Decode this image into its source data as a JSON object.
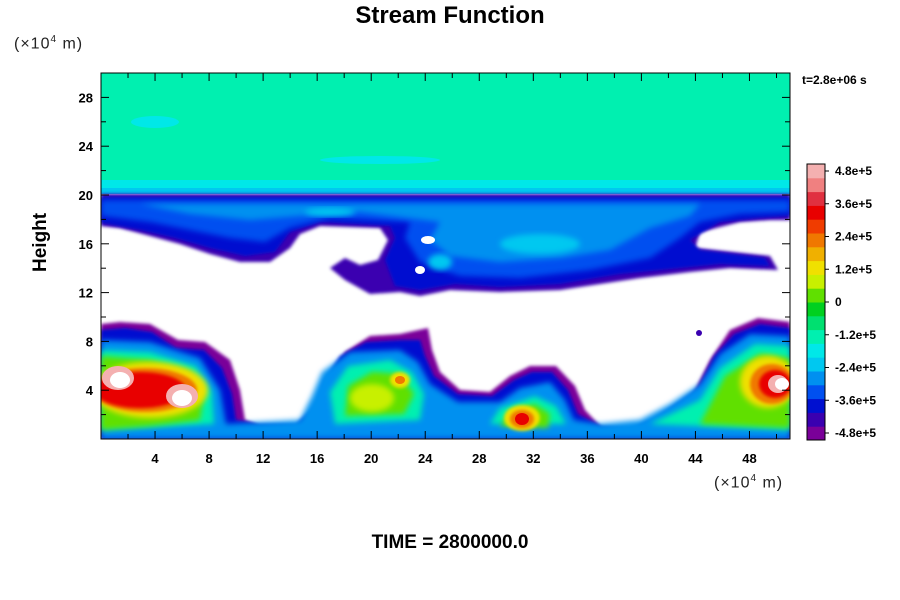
{
  "chart_data": {
    "type": "heatmap",
    "title": "Stream Function",
    "ylabel": "Height",
    "xlabel": "",
    "y_unit": {
      "base": "(×10",
      "exp": "4",
      "tail": " m)"
    },
    "x_unit": {
      "base": "(×10",
      "exp": "4",
      "tail": " m)"
    },
    "xlim": [
      0,
      51
    ],
    "ylim": [
      0,
      30
    ],
    "x_ticks": [
      "4",
      "8",
      "12",
      "16",
      "20",
      "24",
      "28",
      "32",
      "36",
      "40",
      "44",
      "48"
    ],
    "y_ticks": [
      "4",
      "8",
      "12",
      "16",
      "20",
      "24",
      "28"
    ],
    "time_stamp": "t=2.8e+06 s",
    "footer": "TIME = 2800000.0",
    "colorbar": {
      "range": [
        -480000,
        480000
      ],
      "labels": [
        "4.8e+5",
        "3.6e+5",
        "2.4e+5",
        "1.2e+5",
        "0",
        "-1.2e+5",
        "-2.4e+5",
        "-3.6e+5",
        "-4.8e+5"
      ],
      "colors": [
        "#7a0099",
        "#3a00b0",
        "#0010d0",
        "#0050f0",
        "#0090f0",
        "#00c8f0",
        "#00e8e8",
        "#00f0b0",
        "#00e070",
        "#00d020",
        "#60e000",
        "#c8f000",
        "#f0e000",
        "#f0b000",
        "#f07800",
        "#f03c00",
        "#e80000",
        "#e03040",
        "#f08080",
        "#f4b0b0"
      ]
    },
    "regions": [
      {
        "name": "upper layer",
        "y_range": [
          20.5,
          30
        ],
        "value_approx": -80000
      },
      {
        "name": "upper jet band (negative)",
        "y_range": [
          13,
          20.5
        ],
        "value_approx": -330000
      },
      {
        "name": "lower layer",
        "y_range": [
          0.8,
          9.8
        ],
        "value_approx": -250000
      },
      {
        "name": "positive maxima",
        "points": [
          {
            "x": 2,
            "y": 3.5,
            "value_approx": 460000
          },
          {
            "x": 6.5,
            "y": 3.3,
            "value_approx": 460000
          },
          {
            "x": 22.5,
            "y": 4.8,
            "value_approx": 250000
          },
          {
            "x": 31.5,
            "y": 1.8,
            "value_approx": 380000
          },
          {
            "x": 49.5,
            "y": 4,
            "value_approx": 460000
          }
        ]
      }
    ]
  }
}
